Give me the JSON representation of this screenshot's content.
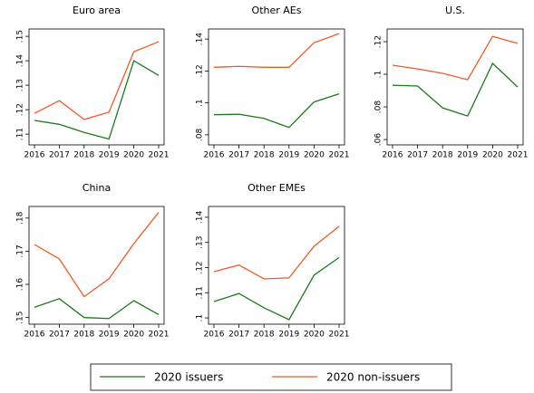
{
  "chart_data": [
    {
      "type": "line",
      "title": "Euro area",
      "categories": [
        "2016",
        "2017",
        "2018",
        "2019",
        "2020",
        "2021"
      ],
      "ylim": [
        0.1056,
        0.153
      ],
      "yticks": [
        {
          "value": 0.11,
          "label": ".11"
        },
        {
          "value": 0.12,
          "label": ".12"
        },
        {
          "value": 0.13,
          "label": ".13"
        },
        {
          "value": 0.14,
          "label": ".14"
        },
        {
          "value": 0.15,
          "label": ".15"
        }
      ],
      "series": [
        {
          "name": "2020 issuers",
          "color": "#1a7a1a",
          "values": [
            0.1156,
            0.114,
            0.1107,
            0.108,
            0.14,
            0.134
          ]
        },
        {
          "name": "2020 non-issuers",
          "color": "#f05a28",
          "values": [
            0.1185,
            0.1237,
            0.116,
            0.119,
            0.1437,
            0.1478
          ]
        }
      ]
    },
    {
      "type": "line",
      "title": "Other AEs",
      "categories": [
        "2016",
        "2017",
        "2018",
        "2019",
        "2020",
        "2021"
      ],
      "ylim": [
        0.0737,
        0.1463
      ],
      "yticks": [
        {
          "value": 0.08,
          "label": ".08"
        },
        {
          "value": 0.1,
          "label": ".1"
        },
        {
          "value": 0.12,
          "label": ".12"
        },
        {
          "value": 0.14,
          "label": ".14"
        }
      ],
      "series": [
        {
          "color": "#1a7a1a",
          "values": [
            0.0926,
            0.0929,
            0.0903,
            0.0846,
            0.1006,
            0.1057
          ]
        },
        {
          "color": "#f05a28",
          "values": [
            0.1223,
            0.1229,
            0.1223,
            0.1223,
            0.1377,
            0.1434
          ]
        }
      ]
    },
    {
      "type": "line",
      "title": "U.S.",
      "categories": [
        "2016",
        "2017",
        "2018",
        "2019",
        "2020",
        "2021"
      ],
      "ylim": [
        0.0567,
        0.1278
      ],
      "yticks": [
        {
          "value": 0.06,
          "label": ".06"
        },
        {
          "value": 0.08,
          "label": ".08"
        },
        {
          "value": 0.1,
          "label": ".1"
        },
        {
          "value": 0.12,
          "label": ".12"
        }
      ],
      "series": [
        {
          "color": "#1a7a1a",
          "values": [
            0.0933,
            0.0928,
            0.0794,
            0.0744,
            0.1067,
            0.0922
          ]
        },
        {
          "color": "#f05a28",
          "values": [
            0.1056,
            0.1033,
            0.1006,
            0.0967,
            0.1233,
            0.1189
          ]
        }
      ]
    },
    {
      "type": "line",
      "title": "China",
      "categories": [
        "2016",
        "2017",
        "2018",
        "2019",
        "2020",
        "2021"
      ],
      "ylim": [
        0.148,
        0.1835
      ],
      "yticks": [
        {
          "value": 0.15,
          "label": ".15"
        },
        {
          "value": 0.16,
          "label": ".16"
        },
        {
          "value": 0.17,
          "label": ".17"
        },
        {
          "value": 0.18,
          "label": ".18"
        }
      ],
      "series": [
        {
          "color": "#1a7a1a",
          "values": [
            0.1531,
            0.1557,
            0.15,
            0.1497,
            0.1551,
            0.1509
          ]
        },
        {
          "color": "#f05a28",
          "values": [
            0.172,
            0.1677,
            0.1563,
            0.1617,
            0.1723,
            0.1817
          ]
        }
      ]
    },
    {
      "type": "line",
      "title": "Other EMEs",
      "categories": [
        "2016",
        "2017",
        "2018",
        "2019",
        "2020",
        "2021"
      ],
      "ylim": [
        0.0975,
        0.1443
      ],
      "yticks": [
        {
          "value": 0.1,
          "label": ".1"
        },
        {
          "value": 0.11,
          "label": ".11"
        },
        {
          "value": 0.12,
          "label": ".12"
        },
        {
          "value": 0.13,
          "label": ".13"
        },
        {
          "value": 0.14,
          "label": ".14"
        }
      ],
      "series": [
        {
          "color": "#1a7a1a",
          "values": [
            0.1065,
            0.1097,
            0.104,
            0.0993,
            0.117,
            0.124
          ]
        },
        {
          "color": "#f05a28",
          "values": [
            0.1184,
            0.121,
            0.1155,
            0.1159,
            0.1285,
            0.1364
          ]
        }
      ]
    }
  ]
}
